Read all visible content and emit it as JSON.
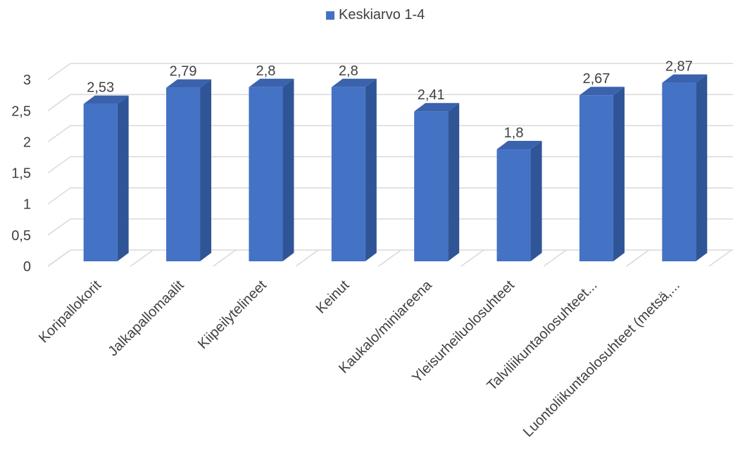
{
  "chart_data": {
    "type": "bar",
    "style": "3d-column",
    "categories": [
      "Koripallokorit",
      "Jalkapallomaalit",
      "Kiipeilytelineet",
      "Keinut",
      "Kaukalo/miniareena",
      "Yleisurheiluolosuhteet",
      "Talviliikuntaolosuhteet...",
      "Luontoliikuntaolosuhteet (metsä,..."
    ],
    "series": [
      {
        "name": "Keskiarvo 1-4",
        "values": [
          2.53,
          2.79,
          2.8,
          2.8,
          2.41,
          1.8,
          2.67,
          2.87
        ]
      }
    ],
    "data_labels": [
      "2,53",
      "2,79",
      "2,8",
      "2,8",
      "2,41",
      "1,8",
      "2,67",
      "2,87"
    ],
    "y_ticks": [
      "0",
      "0,5",
      "1",
      "1,5",
      "2",
      "2,5",
      "3"
    ],
    "y_tick_values": [
      0,
      0.5,
      1,
      1.5,
      2,
      2.5,
      3
    ],
    "ylim": [
      0,
      3
    ],
    "grid": true,
    "legend_position": "top",
    "colors": {
      "bar_front": "#4472c4",
      "bar_side": "#2f5597",
      "bar_top": "#3a62ad",
      "grid": "#d9d9d9",
      "text": "#404040"
    }
  }
}
